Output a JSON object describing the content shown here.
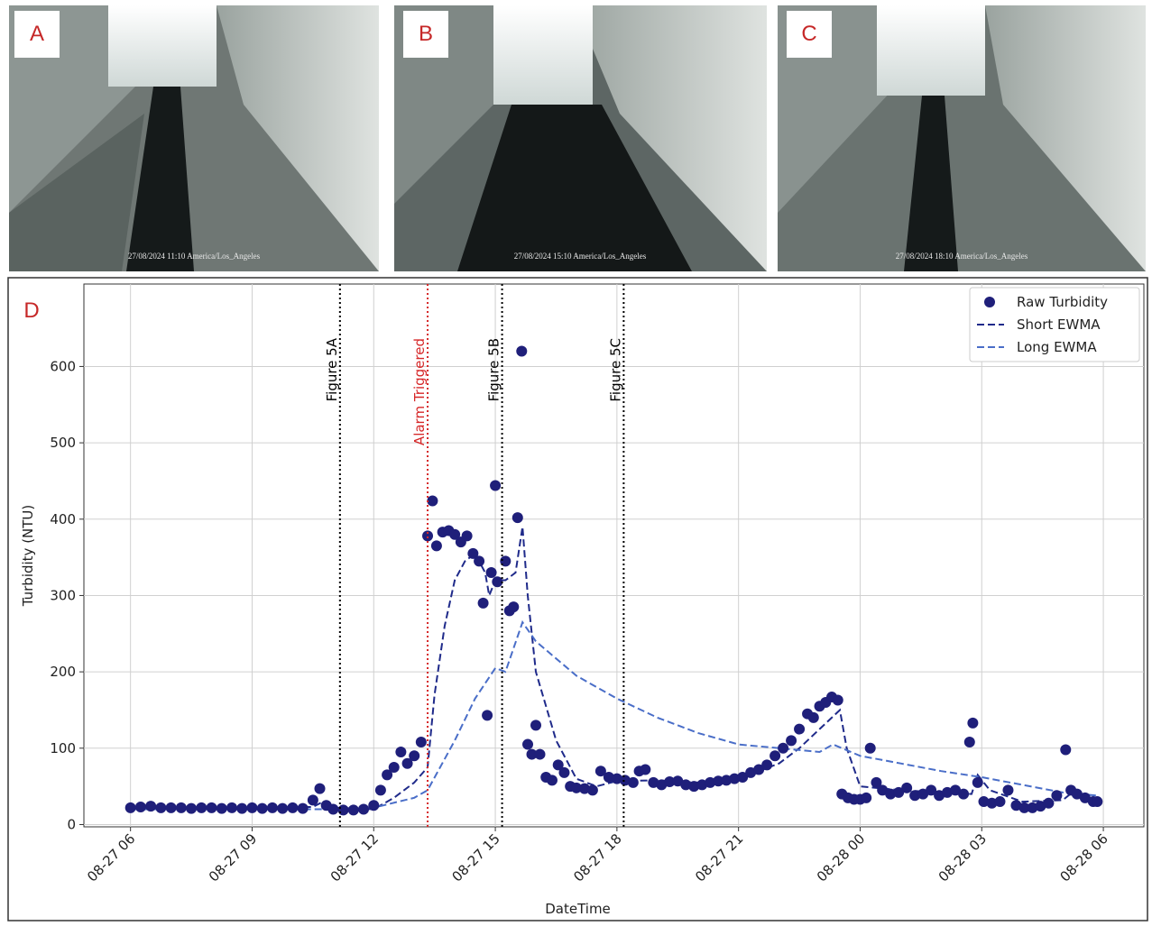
{
  "panels": [
    {
      "label": "A",
      "timestamp": "27/08/2024 11:10 America/Los_Angeles"
    },
    {
      "label": "B",
      "timestamp": "27/08/2024 15:10 America/Los_Angeles"
    },
    {
      "label": "C",
      "timestamp": "27/08/2024 18:10 America/Los_Angeles"
    }
  ],
  "chart_panel_label": "D",
  "chart_data": {
    "type": "line",
    "xlabel": "DateTime",
    "ylabel": "Turbidity (NTU)",
    "xlim": [
      4.85,
      31.0
    ],
    "ylim": [
      -3,
      708
    ],
    "xticks": [
      {
        "value": 6,
        "label": "08-27 06"
      },
      {
        "value": 9,
        "label": "08-27 09"
      },
      {
        "value": 12,
        "label": "08-27 12"
      },
      {
        "value": 15,
        "label": "08-27 15"
      },
      {
        "value": 18,
        "label": "08-27 18"
      },
      {
        "value": 21,
        "label": "08-27 21"
      },
      {
        "value": 24,
        "label": "08-28 00"
      },
      {
        "value": 27,
        "label": "08-28 03"
      },
      {
        "value": 30,
        "label": "08-28 06"
      }
    ],
    "yticks": [
      0,
      100,
      200,
      300,
      400,
      500,
      600
    ],
    "grid": true,
    "legend": "upper right",
    "vlines": [
      {
        "x": 11.167,
        "label": "Figure 5A",
        "color": "#000000"
      },
      {
        "x": 13.33,
        "label": "Alarm Triggered",
        "color": "#d62728"
      },
      {
        "x": 15.167,
        "label": "Figure 5B",
        "color": "#000000"
      },
      {
        "x": 18.167,
        "label": "Figure 5C",
        "color": "#000000"
      }
    ],
    "series": [
      {
        "name": "Raw Turbidity",
        "color": "#1f1f7a",
        "mode": "markers",
        "x": [
          6.0,
          6.25,
          6.5,
          6.75,
          7.0,
          7.25,
          7.5,
          7.75,
          8.0,
          8.25,
          8.5,
          8.75,
          9.0,
          9.25,
          9.5,
          9.75,
          10.0,
          10.25,
          10.5,
          10.67,
          10.83,
          11.0,
          11.25,
          11.5,
          11.75,
          12.0,
          12.17,
          12.33,
          12.5,
          12.67,
          12.83,
          13.0,
          13.17,
          13.33,
          13.45,
          13.55,
          13.7,
          13.85,
          14.0,
          14.15,
          14.3,
          14.45,
          14.6,
          14.7,
          14.8,
          14.9,
          15.0,
          15.05,
          15.25,
          15.35,
          15.45,
          15.55,
          15.65,
          15.8,
          15.9,
          16.0,
          16.1,
          16.25,
          16.4,
          16.55,
          16.7,
          16.85,
          17.0,
          17.2,
          17.4,
          17.6,
          17.8,
          18.0,
          18.2,
          18.4,
          18.55,
          18.7,
          18.9,
          19.1,
          19.3,
          19.5,
          19.7,
          19.9,
          20.1,
          20.3,
          20.5,
          20.7,
          20.9,
          21.1,
          21.3,
          21.5,
          21.7,
          21.9,
          22.1,
          22.3,
          22.5,
          22.7,
          22.85,
          23.0,
          23.15,
          23.3,
          23.45,
          23.55,
          23.7,
          23.85,
          24.0,
          24.15,
          24.25,
          24.4,
          24.55,
          24.75,
          24.95,
          25.15,
          25.35,
          25.55,
          25.75,
          25.95,
          26.15,
          26.35,
          26.55,
          26.7,
          26.78,
          26.9,
          27.05,
          27.25,
          27.45,
          27.65,
          27.85,
          28.05,
          28.25,
          28.45,
          28.65,
          28.85,
          29.07,
          29.2,
          29.35,
          29.55,
          29.75,
          29.85
        ],
        "values": [
          22,
          23,
          24,
          22,
          22,
          22,
          21,
          22,
          22,
          21,
          22,
          21,
          22,
          21,
          22,
          21,
          22,
          21,
          32,
          47,
          25,
          20,
          19,
          19,
          20,
          25,
          45,
          65,
          75,
          95,
          80,
          90,
          108,
          378,
          424,
          365,
          383,
          385,
          380,
          370,
          378,
          355,
          345,
          290,
          143,
          330,
          444,
          318,
          345,
          280,
          285,
          402,
          620,
          105,
          92,
          130,
          92,
          62,
          58,
          78,
          68,
          50,
          48,
          47,
          45,
          70,
          62,
          60,
          58,
          55,
          70,
          72,
          55,
          52,
          56,
          57,
          52,
          50,
          52,
          55,
          57,
          58,
          60,
          62,
          68,
          72,
          78,
          90,
          100,
          110,
          125,
          145,
          140,
          155,
          160,
          167,
          163,
          40,
          35,
          33,
          33,
          35,
          100,
          55,
          45,
          40,
          42,
          48,
          38,
          40,
          45,
          38,
          42,
          45,
          40,
          108,
          133,
          55,
          30,
          28,
          30,
          45,
          25,
          22,
          22,
          24,
          28,
          38,
          98,
          45,
          40,
          35,
          30,
          30
        ]
      },
      {
        "name": "Short EWMA",
        "color": "#1f2a8a",
        "mode": "dashed",
        "x": [
          6,
          10.5,
          10.75,
          11,
          12,
          12.5,
          13,
          13.33,
          13.5,
          13.75,
          14,
          14.25,
          14.5,
          14.75,
          14.85,
          15,
          15.25,
          15.5,
          15.67,
          15.8,
          16,
          16.5,
          17,
          17.5,
          18,
          19,
          20,
          21,
          22,
          22.5,
          23,
          23.5,
          23.67,
          24,
          25,
          26.75,
          26.9,
          27.2,
          28,
          29,
          29.3,
          29.83
        ],
        "values": [
          22,
          23,
          30,
          22,
          20,
          35,
          55,
          75,
          170,
          260,
          320,
          345,
          355,
          330,
          300,
          320,
          320,
          330,
          390,
          300,
          200,
          110,
          60,
          50,
          57,
          58,
          55,
          60,
          80,
          100,
          125,
          150,
          100,
          50,
          45,
          40,
          65,
          45,
          30,
          32,
          45,
          32
        ]
      },
      {
        "name": "Long EWMA",
        "color": "#4a6ec8",
        "mode": "dashed",
        "x": [
          6,
          11,
          12,
          13,
          13.33,
          14,
          14.5,
          15,
          15.25,
          15.67,
          16,
          17,
          18,
          19,
          20,
          21,
          22,
          23,
          23.33,
          24,
          25,
          26,
          27,
          28,
          29,
          29.83
        ],
        "values": [
          20,
          20,
          22,
          35,
          45,
          110,
          165,
          205,
          200,
          265,
          240,
          195,
          165,
          140,
          120,
          105,
          100,
          95,
          105,
          90,
          80,
          70,
          62,
          52,
          42,
          38
        ]
      }
    ]
  }
}
